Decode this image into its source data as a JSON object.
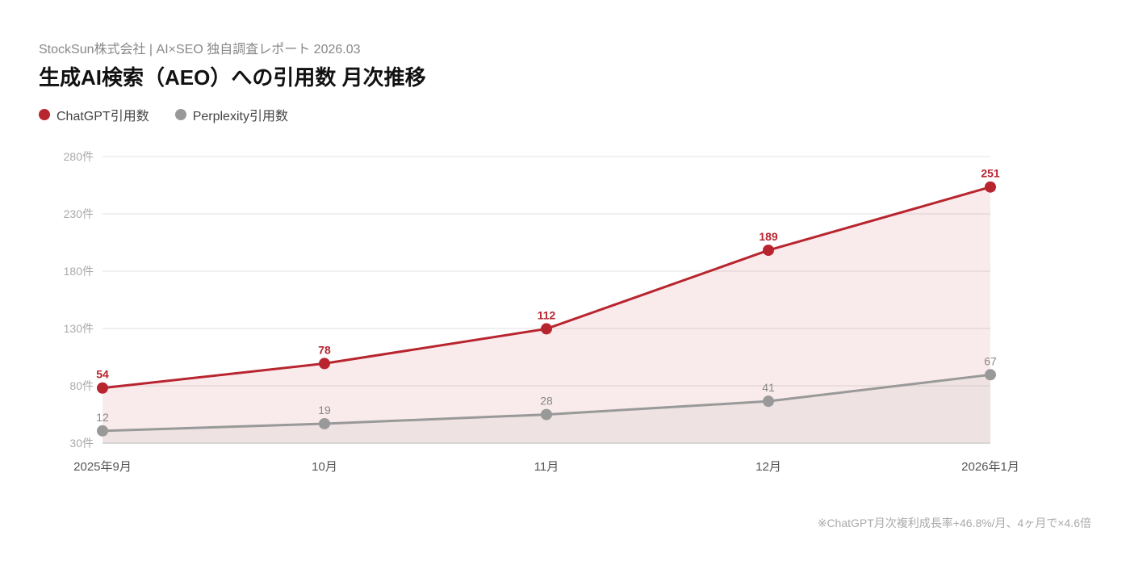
{
  "header": {
    "subtitle": "StockSun株式会社 | AI×SEO 独自調査レポート 2026.03",
    "title": "生成AI検索（AEO）への引用数 月次推移"
  },
  "legend": [
    {
      "label": "ChatGPT引用数",
      "color": "#b8252f"
    },
    {
      "label": "Perplexity引用数",
      "color": "#999999"
    }
  ],
  "footnote": "※ChatGPT月次複利成長率+46.8%/月、4ヶ月で×4.6倍",
  "chart_data": {
    "type": "line",
    "title": "生成AI検索（AEO）への引用数 月次推移",
    "categories": [
      "2025年9月",
      "10月",
      "11月",
      "12月",
      "2026年1月"
    ],
    "series": [
      {
        "name": "ChatGPT引用数",
        "values": [
          54,
          78,
          112,
          189,
          251
        ],
        "color": "#b8252f",
        "fill": "rgba(184,37,47,0.09)"
      },
      {
        "name": "Perplexity引用数",
        "values": [
          12,
          19,
          28,
          41,
          67
        ],
        "color": "#999999",
        "fill": "rgba(150,150,150,0.10)"
      }
    ],
    "yticks": [
      "280件",
      "230件",
      "180件",
      "130件",
      "80件",
      "30件"
    ],
    "xlabel": "",
    "ylabel": "",
    "grid": true,
    "legend_position": "top-left"
  }
}
